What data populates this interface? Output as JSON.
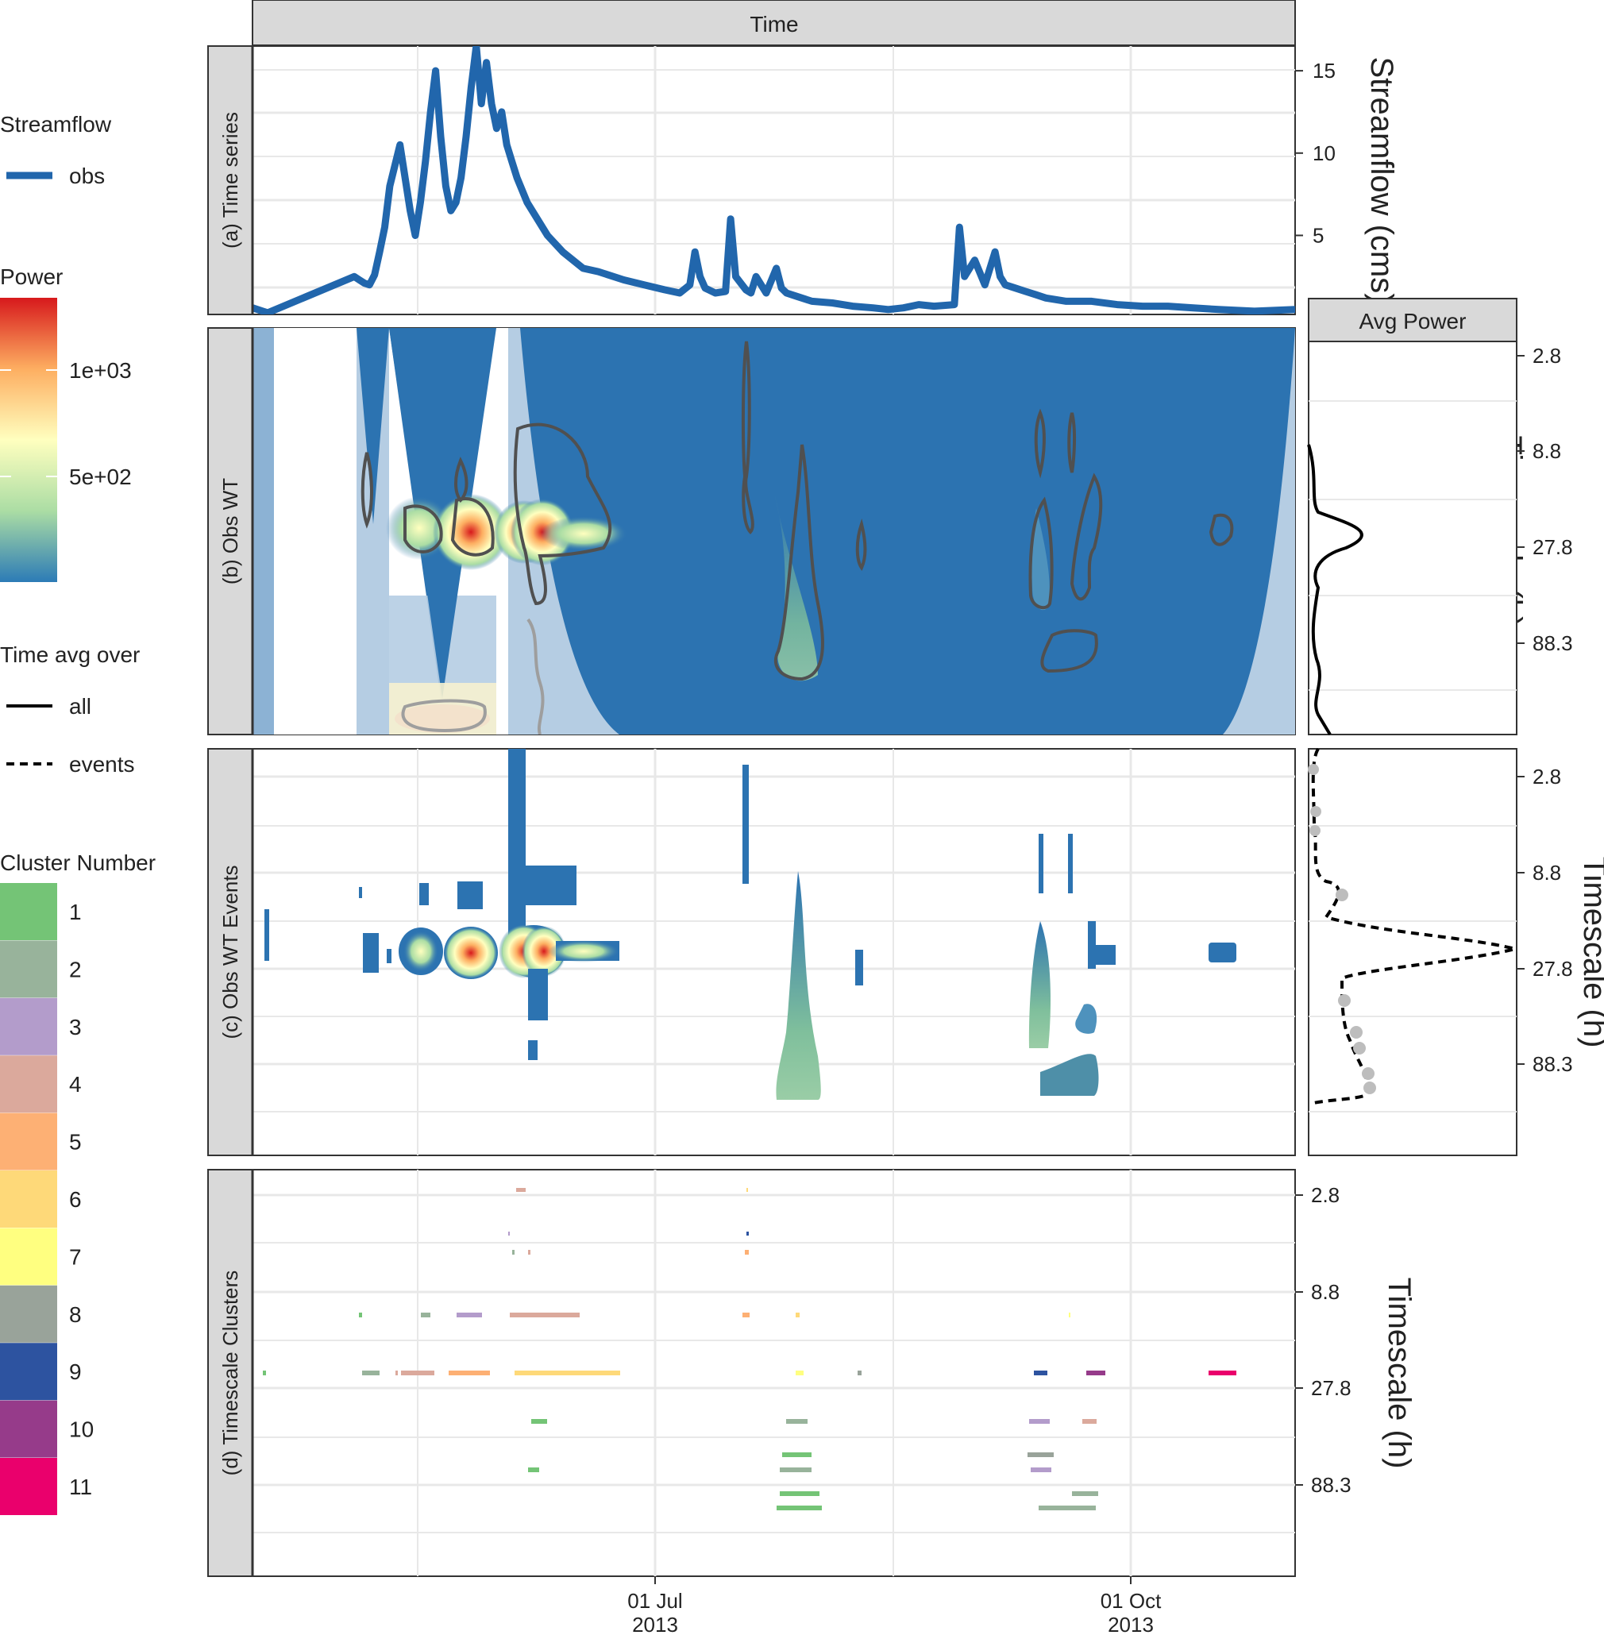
{
  "chart_data": [
    {
      "type": "line",
      "panel": "(a) Time series",
      "strip_top": "Time",
      "ylabel": "Streamflow (cms)",
      "y_ticks": [
        5,
        10,
        15
      ],
      "ylim": [
        0.2,
        16.5
      ],
      "x_ticks": [
        "01 Jul\n2013",
        "01 Oct\n2013"
      ],
      "xlim": [
        "2013-04-18",
        "2013-11-09"
      ],
      "series": [
        {
          "name": "obs",
          "color": "#2166ac",
          "x": [
            "2013-04-18",
            "2013-04-20",
            "2013-04-21",
            "2013-05-08",
            "2013-05-09",
            "2013-05-10",
            "2013-05-11",
            "2013-05-12",
            "2013-05-13",
            "2013-05-14",
            "2013-05-15",
            "2013-05-17",
            "2013-05-19",
            "2013-05-20",
            "2013-05-21",
            "2013-05-22",
            "2013-05-23",
            "2013-05-24",
            "2013-05-25",
            "2013-05-26",
            "2013-05-27",
            "2013-05-28",
            "2013-05-29",
            "2013-05-30",
            "2013-05-31",
            "2013-06-01",
            "2013-06-02",
            "2013-06-03",
            "2013-06-04",
            "2013-06-05",
            "2013-06-06",
            "2013-06-07",
            "2013-06-08",
            "2013-06-09",
            "2013-06-11",
            "2013-06-13",
            "2013-06-15",
            "2013-06-18",
            "2013-06-22",
            "2013-06-25",
            "2013-06-30",
            "2013-07-04",
            "2013-07-08",
            "2013-07-11",
            "2013-07-13",
            "2013-07-14",
            "2013-07-15",
            "2013-07-16",
            "2013-07-18",
            "2013-07-20",
            "2013-07-21",
            "2013-07-22",
            "2013-07-24",
            "2013-07-25",
            "2013-07-26",
            "2013-07-28",
            "2013-07-30",
            "2013-07-31",
            "2013-08-01",
            "2013-08-03",
            "2013-08-06",
            "2013-08-10",
            "2013-08-14",
            "2013-08-18",
            "2013-08-21",
            "2013-08-24",
            "2013-08-27",
            "2013-08-30",
            "2013-09-03",
            "2013-09-04",
            "2013-09-05",
            "2013-09-07",
            "2013-09-09",
            "2013-09-11",
            "2013-09-12",
            "2013-09-13",
            "2013-09-15",
            "2013-09-17",
            "2013-09-19",
            "2013-09-21",
            "2013-09-25",
            "2013-09-30",
            "2013-10-05",
            "2013-10-10",
            "2013-10-15",
            "2013-10-20",
            "2013-10-25",
            "2013-11-01",
            "2013-11-09"
          ],
          "y": [
            0.6,
            0.4,
            0.3,
            2.5,
            2.3,
            2.1,
            2.0,
            2.6,
            4.0,
            5.5,
            8.0,
            10.5,
            6.5,
            5.0,
            7.0,
            9.5,
            12.5,
            15.0,
            11.0,
            8.0,
            6.5,
            7.0,
            8.5,
            11.0,
            14.0,
            16.5,
            13.0,
            15.5,
            13.0,
            11.5,
            12.5,
            10.5,
            9.5,
            8.5,
            7.0,
            6.0,
            5.0,
            4.0,
            3.0,
            2.8,
            2.3,
            2.0,
            1.7,
            1.5,
            2.0,
            4.0,
            2.5,
            1.8,
            1.5,
            1.6,
            6.0,
            2.5,
            1.7,
            1.5,
            2.5,
            1.5,
            3.0,
            1.8,
            1.5,
            1.3,
            1.0,
            0.9,
            0.7,
            0.6,
            0.5,
            0.6,
            0.8,
            0.7,
            0.8,
            5.5,
            2.5,
            3.5,
            2.0,
            4.0,
            2.5,
            2.0,
            1.8,
            1.6,
            1.4,
            1.2,
            1.0,
            1.0,
            0.8,
            0.7,
            0.7,
            0.6,
            0.5,
            0.4,
            0.5
          ]
        }
      ]
    },
    {
      "type": "heatmap",
      "panel": "(b) Obs WT",
      "ylabel": "Timescale (h)",
      "y_ticks": [
        2.8,
        8.8,
        27.8,
        88.3
      ],
      "y_scale": "log",
      "color_scale": {
        "title": "Power",
        "ticks": [
          "5e+02",
          "1e+03"
        ],
        "palette": [
          "#2c7bb6",
          "#abdda4",
          "#ffffbf",
          "#fdae61",
          "#d7191c"
        ]
      },
      "hotspots": [
        {
          "time": "2013-05-23",
          "timescale_h": 24,
          "power": 1300
        },
        {
          "time": "2013-06-06",
          "timescale_h": 24,
          "power": 1250
        },
        {
          "time": "2013-06-08",
          "timescale_h": 24,
          "power": 1250
        },
        {
          "time": "2013-05-14",
          "timescale_h": 24,
          "power": 650
        },
        {
          "time": "2013-07-25",
          "timescale_h": 70,
          "power": 300
        }
      ],
      "side_panel": {
        "strip": "Avg Power",
        "series": [
          {
            "name": "all",
            "line": "solid",
            "peak_timescale_h": 24
          }
        ]
      }
    },
    {
      "type": "heatmap",
      "panel": "(c) Obs WT Events",
      "ylabel": "Timescale (h)",
      "y_ticks": [
        2.8,
        8.8,
        27.8,
        88.3
      ],
      "side_panel": {
        "series": [
          {
            "name": "events",
            "line": "dashed",
            "peak_timescale_h": 24
          }
        ]
      }
    },
    {
      "type": "scatter",
      "panel": "(d) Timescale Clusters",
      "ylabel": "Timescale (h)",
      "y_ticks": [
        2.8,
        8.8,
        27.8,
        88.3
      ],
      "x_ticks": [
        "01 Jul\n2013",
        "01 Oct\n2013"
      ]
    }
  ],
  "figure": {
    "strip_top": "Time",
    "strip_avg": "Avg Power",
    "panel_a": "(a)  Time series",
    "panel_b": "(b)  Obs WT",
    "panel_c": "(c)  Obs WT Events",
    "panel_d": "(d)  Timescale Clusters",
    "ylabel_a": "Streamflow (cms)",
    "ylabel_ts": "Timescale (h)",
    "xtick_jul": "01 Jul",
    "xtick_oct": "01 Oct",
    "xtick_year": "2013",
    "y_a_15": "15",
    "y_a_10": "10",
    "y_a_5": "5",
    "ts_2_8": "2.8",
    "ts_8_8": "8.8",
    "ts_27_8": "27.8",
    "ts_88_3": "88.3"
  },
  "legends": {
    "streamflow_title": "Streamflow",
    "streamflow_item": "obs",
    "power_title": "Power",
    "power_hi": "1e+03",
    "power_lo": "5e+02",
    "avg_title": "Time avg over",
    "avg_all": "all",
    "avg_events": "events",
    "cluster_title": "Cluster Number",
    "clusters": [
      {
        "label": "1",
        "color": "#74c476"
      },
      {
        "label": "2",
        "color": "#98b39b"
      },
      {
        "label": "3",
        "color": "#b39ccb"
      },
      {
        "label": "4",
        "color": "#dba99c"
      },
      {
        "label": "5",
        "color": "#fdb074"
      },
      {
        "label": "6",
        "color": "#fed979"
      },
      {
        "label": "7",
        "color": "#ffff80"
      },
      {
        "label": "8",
        "color": "#99a39a"
      },
      {
        "label": "9",
        "color": "#2d53a0"
      },
      {
        "label": "10",
        "color": "#963b8a"
      },
      {
        "label": "11",
        "color": "#ea006c"
      }
    ]
  },
  "colors": {
    "line": "#2166ac",
    "wavelet_bg": "#2c73b1",
    "strip_bg": "#d9d9d9",
    "grid": "#e6e6e6",
    "contour": "#505050"
  }
}
